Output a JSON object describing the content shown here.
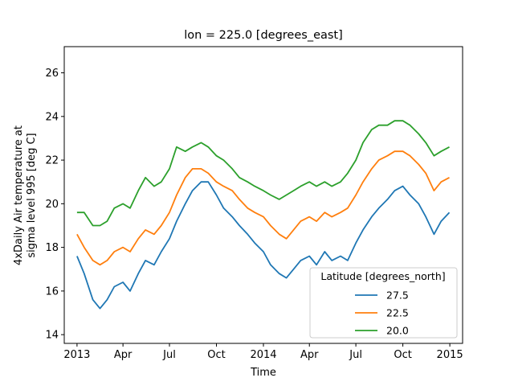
{
  "chart_data": {
    "type": "line",
    "title": "lon = 225.0 [degrees_east]",
    "xlabel": "Time",
    "ylabel_lines": [
      "4xDaily Air temperature at",
      "sigma level 995 [deg C]"
    ],
    "x_range": [
      "2012-12-07",
      "2015-01-26"
    ],
    "x_ticks": [
      {
        "date": "2013-01-01",
        "label": "2013"
      },
      {
        "date": "2013-04-01",
        "label": "Apr"
      },
      {
        "date": "2013-07-01",
        "label": "Jul"
      },
      {
        "date": "2013-10-01",
        "label": "Oct"
      },
      {
        "date": "2014-01-01",
        "label": "2014"
      },
      {
        "date": "2014-04-01",
        "label": "Apr"
      },
      {
        "date": "2014-07-01",
        "label": "Jul"
      },
      {
        "date": "2014-10-01",
        "label": "Oct"
      },
      {
        "date": "2015-01-01",
        "label": "2015"
      }
    ],
    "ylim": [
      13.6,
      27.2
    ],
    "y_ticks": [
      14,
      16,
      18,
      20,
      22,
      24,
      26
    ],
    "grid": false,
    "legend": {
      "title": "Latitude [degrees_north]",
      "placement": "lower right"
    },
    "series": [
      {
        "name": "27.5",
        "color": "#1f77b4",
        "points": [
          [
            "2013-01-01",
            17.6
          ],
          [
            "2013-01-15",
            16.8
          ],
          [
            "2013-02-01",
            15.6
          ],
          [
            "2013-02-15",
            15.2
          ],
          [
            "2013-03-01",
            15.6
          ],
          [
            "2013-03-15",
            16.2
          ],
          [
            "2013-04-01",
            16.4
          ],
          [
            "2013-04-15",
            16.0
          ],
          [
            "2013-05-01",
            16.8
          ],
          [
            "2013-05-15",
            17.4
          ],
          [
            "2013-06-01",
            17.2
          ],
          [
            "2013-06-15",
            17.8
          ],
          [
            "2013-07-01",
            18.4
          ],
          [
            "2013-07-15",
            19.2
          ],
          [
            "2013-08-01",
            20.0
          ],
          [
            "2013-08-15",
            20.6
          ],
          [
            "2013-09-01",
            21.0
          ],
          [
            "2013-09-15",
            21.0
          ],
          [
            "2013-10-01",
            20.4
          ],
          [
            "2013-10-15",
            19.8
          ],
          [
            "2013-11-01",
            19.4
          ],
          [
            "2013-11-15",
            19.0
          ],
          [
            "2013-12-01",
            18.6
          ],
          [
            "2013-12-15",
            18.2
          ],
          [
            "2014-01-01",
            17.8
          ],
          [
            "2014-01-15",
            17.2
          ],
          [
            "2014-02-01",
            16.8
          ],
          [
            "2014-02-15",
            16.6
          ],
          [
            "2014-03-01",
            17.0
          ],
          [
            "2014-03-15",
            17.4
          ],
          [
            "2014-04-01",
            17.6
          ],
          [
            "2014-04-15",
            17.2
          ],
          [
            "2014-05-01",
            17.8
          ],
          [
            "2014-05-15",
            17.4
          ],
          [
            "2014-06-01",
            17.6
          ],
          [
            "2014-06-15",
            17.4
          ],
          [
            "2014-07-01",
            18.2
          ],
          [
            "2014-07-15",
            18.8
          ],
          [
            "2014-08-01",
            19.4
          ],
          [
            "2014-08-15",
            19.8
          ],
          [
            "2014-09-01",
            20.2
          ],
          [
            "2014-09-15",
            20.6
          ],
          [
            "2014-10-01",
            20.8
          ],
          [
            "2014-10-15",
            20.4
          ],
          [
            "2014-11-01",
            20.0
          ],
          [
            "2014-11-15",
            19.4
          ],
          [
            "2014-12-01",
            18.6
          ],
          [
            "2014-12-15",
            19.2
          ],
          [
            "2014-12-31",
            19.6
          ]
        ]
      },
      {
        "name": "22.5",
        "color": "#ff7f0e",
        "points": [
          [
            "2013-01-01",
            18.6
          ],
          [
            "2013-01-15",
            18.0
          ],
          [
            "2013-02-01",
            17.4
          ],
          [
            "2013-02-15",
            17.2
          ],
          [
            "2013-03-01",
            17.4
          ],
          [
            "2013-03-15",
            17.8
          ],
          [
            "2013-04-01",
            18.0
          ],
          [
            "2013-04-15",
            17.8
          ],
          [
            "2013-05-01",
            18.4
          ],
          [
            "2013-05-15",
            18.8
          ],
          [
            "2013-06-01",
            18.6
          ],
          [
            "2013-06-15",
            19.0
          ],
          [
            "2013-07-01",
            19.6
          ],
          [
            "2013-07-15",
            20.4
          ],
          [
            "2013-08-01",
            21.2
          ],
          [
            "2013-08-15",
            21.6
          ],
          [
            "2013-09-01",
            21.6
          ],
          [
            "2013-09-15",
            21.4
          ],
          [
            "2013-10-01",
            21.0
          ],
          [
            "2013-10-15",
            20.8
          ],
          [
            "2013-11-01",
            20.6
          ],
          [
            "2013-11-15",
            20.2
          ],
          [
            "2013-12-01",
            19.8
          ],
          [
            "2013-12-15",
            19.6
          ],
          [
            "2014-01-01",
            19.4
          ],
          [
            "2014-01-15",
            19.0
          ],
          [
            "2014-02-01",
            18.6
          ],
          [
            "2014-02-15",
            18.4
          ],
          [
            "2014-03-01",
            18.8
          ],
          [
            "2014-03-15",
            19.2
          ],
          [
            "2014-04-01",
            19.4
          ],
          [
            "2014-04-15",
            19.2
          ],
          [
            "2014-05-01",
            19.6
          ],
          [
            "2014-05-15",
            19.4
          ],
          [
            "2014-06-01",
            19.6
          ],
          [
            "2014-06-15",
            19.8
          ],
          [
            "2014-07-01",
            20.4
          ],
          [
            "2014-07-15",
            21.0
          ],
          [
            "2014-08-01",
            21.6
          ],
          [
            "2014-08-15",
            22.0
          ],
          [
            "2014-09-01",
            22.2
          ],
          [
            "2014-09-15",
            22.4
          ],
          [
            "2014-10-01",
            22.4
          ],
          [
            "2014-10-15",
            22.2
          ],
          [
            "2014-11-01",
            21.8
          ],
          [
            "2014-11-15",
            21.4
          ],
          [
            "2014-12-01",
            20.6
          ],
          [
            "2014-12-15",
            21.0
          ],
          [
            "2014-12-31",
            21.2
          ]
        ]
      },
      {
        "name": "20.0",
        "color": "#2ca02c",
        "points": [
          [
            "2013-01-01",
            19.6
          ],
          [
            "2013-01-15",
            19.6
          ],
          [
            "2013-02-01",
            19.0
          ],
          [
            "2013-02-15",
            19.0
          ],
          [
            "2013-03-01",
            19.2
          ],
          [
            "2013-03-15",
            19.8
          ],
          [
            "2013-04-01",
            20.0
          ],
          [
            "2013-04-15",
            19.8
          ],
          [
            "2013-05-01",
            20.6
          ],
          [
            "2013-05-15",
            21.2
          ],
          [
            "2013-06-01",
            20.8
          ],
          [
            "2013-06-15",
            21.0
          ],
          [
            "2013-07-01",
            21.6
          ],
          [
            "2013-07-15",
            22.6
          ],
          [
            "2013-08-01",
            22.4
          ],
          [
            "2013-08-15",
            22.6
          ],
          [
            "2013-09-01",
            22.8
          ],
          [
            "2013-09-15",
            22.6
          ],
          [
            "2013-10-01",
            22.2
          ],
          [
            "2013-10-15",
            22.0
          ],
          [
            "2013-11-01",
            21.6
          ],
          [
            "2013-11-15",
            21.2
          ],
          [
            "2013-12-01",
            21.0
          ],
          [
            "2013-12-15",
            20.8
          ],
          [
            "2014-01-01",
            20.6
          ],
          [
            "2014-01-15",
            20.4
          ],
          [
            "2014-02-01",
            20.2
          ],
          [
            "2014-02-15",
            20.4
          ],
          [
            "2014-03-01",
            20.6
          ],
          [
            "2014-03-15",
            20.8
          ],
          [
            "2014-04-01",
            21.0
          ],
          [
            "2014-04-15",
            20.8
          ],
          [
            "2014-05-01",
            21.0
          ],
          [
            "2014-05-15",
            20.8
          ],
          [
            "2014-06-01",
            21.0
          ],
          [
            "2014-06-15",
            21.4
          ],
          [
            "2014-07-01",
            22.0
          ],
          [
            "2014-07-15",
            22.8
          ],
          [
            "2014-08-01",
            23.4
          ],
          [
            "2014-08-15",
            23.6
          ],
          [
            "2014-09-01",
            23.6
          ],
          [
            "2014-09-15",
            23.8
          ],
          [
            "2014-10-01",
            23.8
          ],
          [
            "2014-10-15",
            23.6
          ],
          [
            "2014-11-01",
            23.2
          ],
          [
            "2014-11-15",
            22.8
          ],
          [
            "2014-12-01",
            22.2
          ],
          [
            "2014-12-15",
            22.4
          ],
          [
            "2014-12-31",
            22.6
          ]
        ]
      }
    ]
  }
}
